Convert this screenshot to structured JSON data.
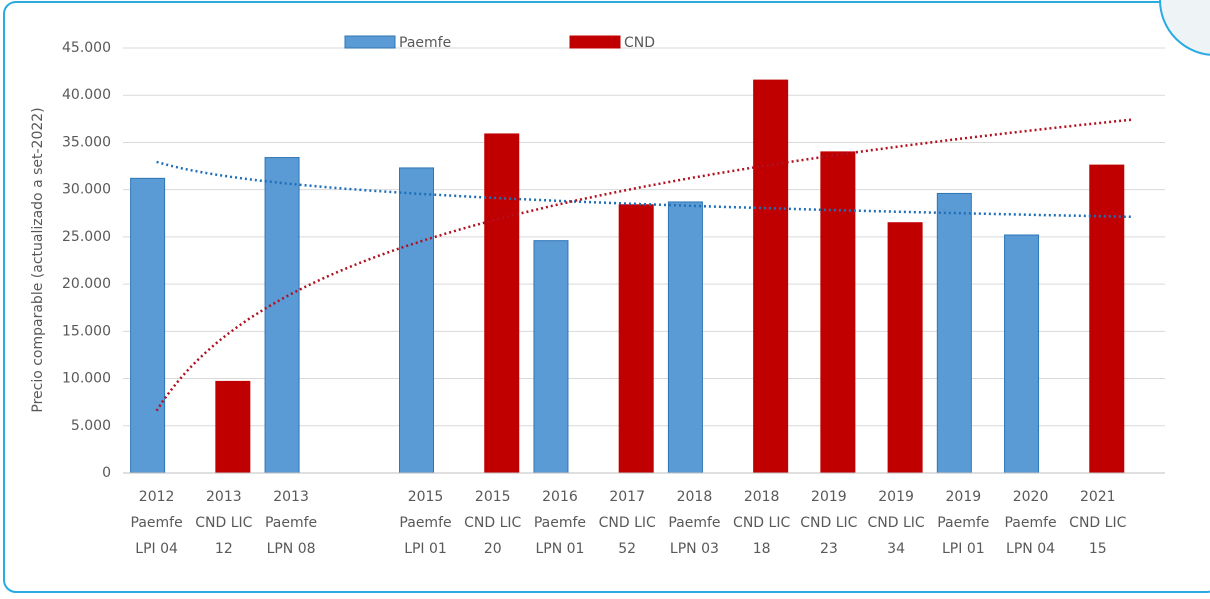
{
  "chart_data": {
    "type": "bar",
    "y_label": "Precio comparable (actualizado a set-2022)",
    "categories": [
      [
        "2012",
        "Paemfe",
        "LPI 04"
      ],
      [
        "2013",
        "CND LIC",
        "12"
      ],
      [
        "2013",
        "Paemfe",
        "LPN 08"
      ],
      null,
      [
        "2015",
        "Paemfe",
        "LPI 01"
      ],
      [
        "2015",
        "CND LIC",
        "20"
      ],
      [
        "2016",
        "Paemfe",
        "LPN 01"
      ],
      [
        "2017",
        "CND LIC",
        "52"
      ],
      [
        "2018",
        "Paemfe",
        "LPN 03"
      ],
      [
        "2018",
        "CND LIC",
        "18"
      ],
      [
        "2019",
        "CND LIC",
        "23"
      ],
      [
        "2019",
        "CND LIC",
        "34"
      ],
      [
        "2019",
        "Paemfe",
        "LPI 01"
      ],
      [
        "2020",
        "Paemfe",
        "LPN 04"
      ],
      [
        "2021",
        "CND LIC",
        "15"
      ]
    ],
    "series": [
      {
        "name": "Paemfe",
        "color": "#5b9bd5",
        "trendline": "logarithmic",
        "trend_color": "#1f6fb8",
        "values": [
          31200,
          null,
          33400,
          null,
          32300,
          null,
          24600,
          null,
          28700,
          null,
          null,
          null,
          29600,
          25200,
          null
        ]
      },
      {
        "name": "CND",
        "color": "#c00000",
        "trendline": "logarithmic",
        "trend_color": "#b01020",
        "values": [
          null,
          9700,
          null,
          null,
          null,
          35900,
          null,
          28400,
          null,
          41600,
          34000,
          26500,
          null,
          null,
          32600
        ]
      }
    ],
    "ylim": [
      0,
      45000
    ],
    "yticks": [
      {
        "value": 0,
        "label": "0"
      },
      {
        "value": 5000,
        "label": "5.000"
      },
      {
        "value": 10000,
        "label": "10.000"
      },
      {
        "value": 15000,
        "label": "15.000"
      },
      {
        "value": 20000,
        "label": "20.000"
      },
      {
        "value": 25000,
        "label": "25.000"
      },
      {
        "value": 30000,
        "label": "30.000"
      },
      {
        "value": 35000,
        "label": "35.000"
      },
      {
        "value": 40000,
        "label": "40.000"
      },
      {
        "value": 45000,
        "label": "45.000"
      }
    ],
    "grid": true,
    "legend": "top"
  }
}
